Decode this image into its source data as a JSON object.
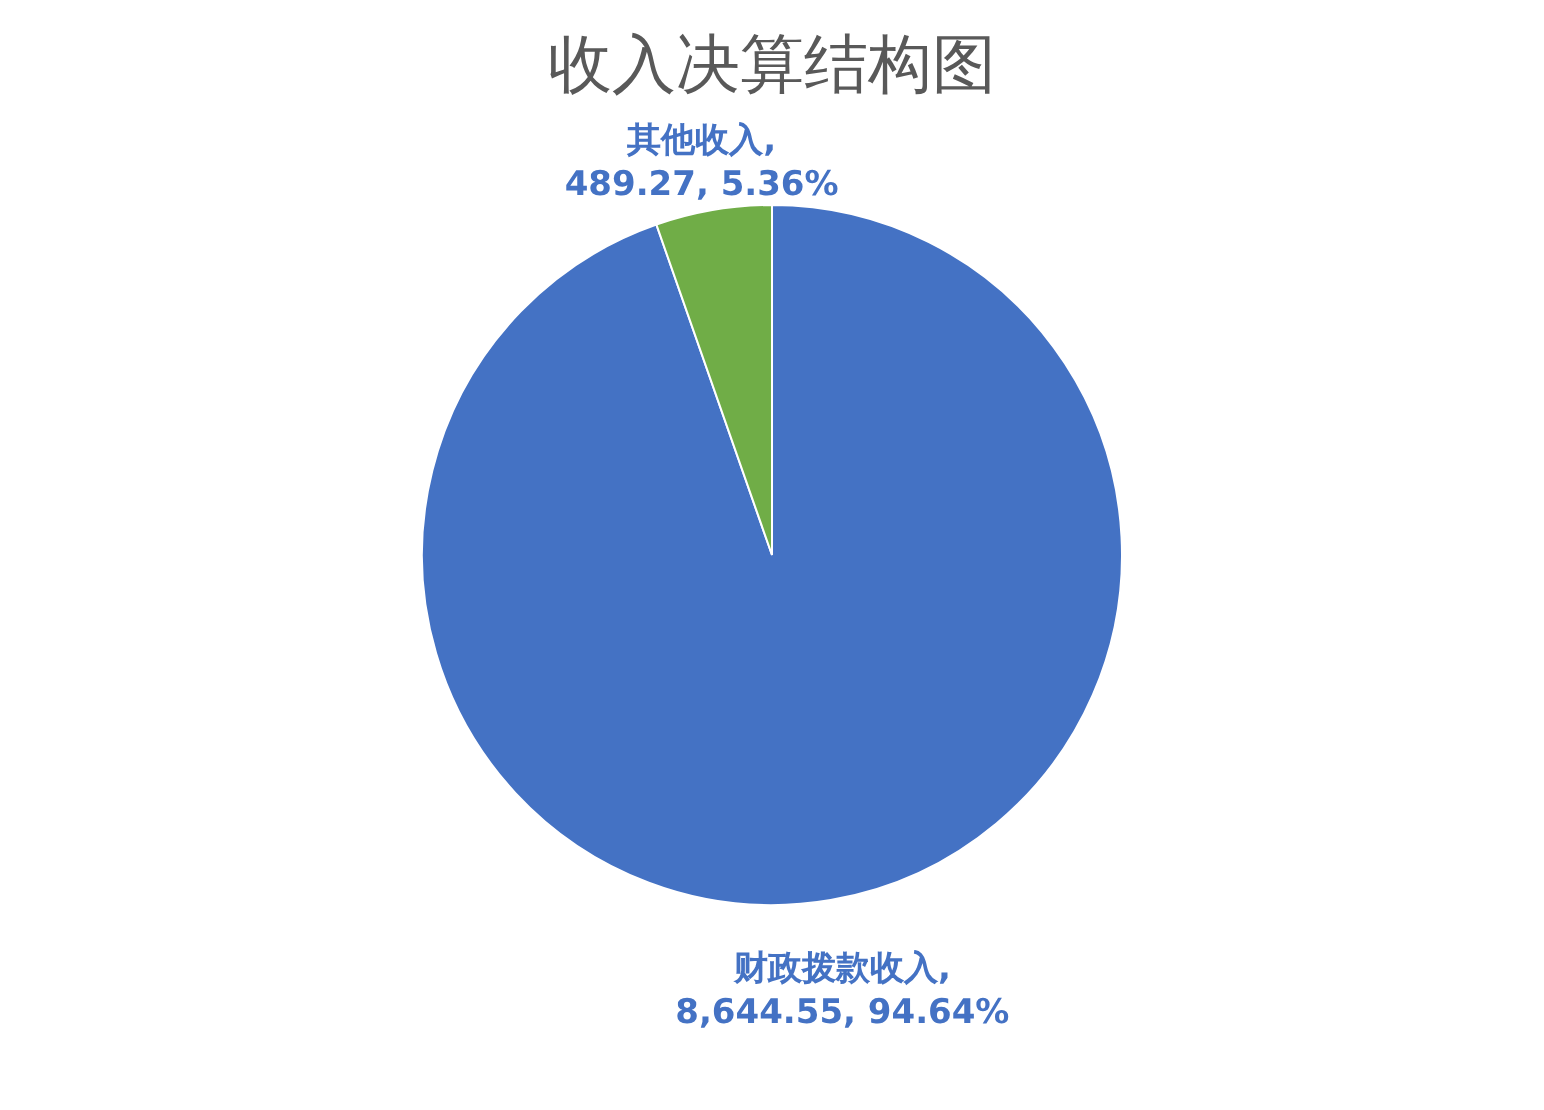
{
  "chart_data": {
    "type": "pie",
    "title": "收入决算结构图",
    "categories": [
      "财政拨款收入",
      "其他收入"
    ],
    "values": [
      8644.55,
      489.27
    ],
    "colors": [
      "#4472c4",
      "#70ad47"
    ],
    "value_labels": [
      ", 8,644.55, 94.64%",
      ", 489.27, 5.36%"
    ],
    "legend": false
  }
}
